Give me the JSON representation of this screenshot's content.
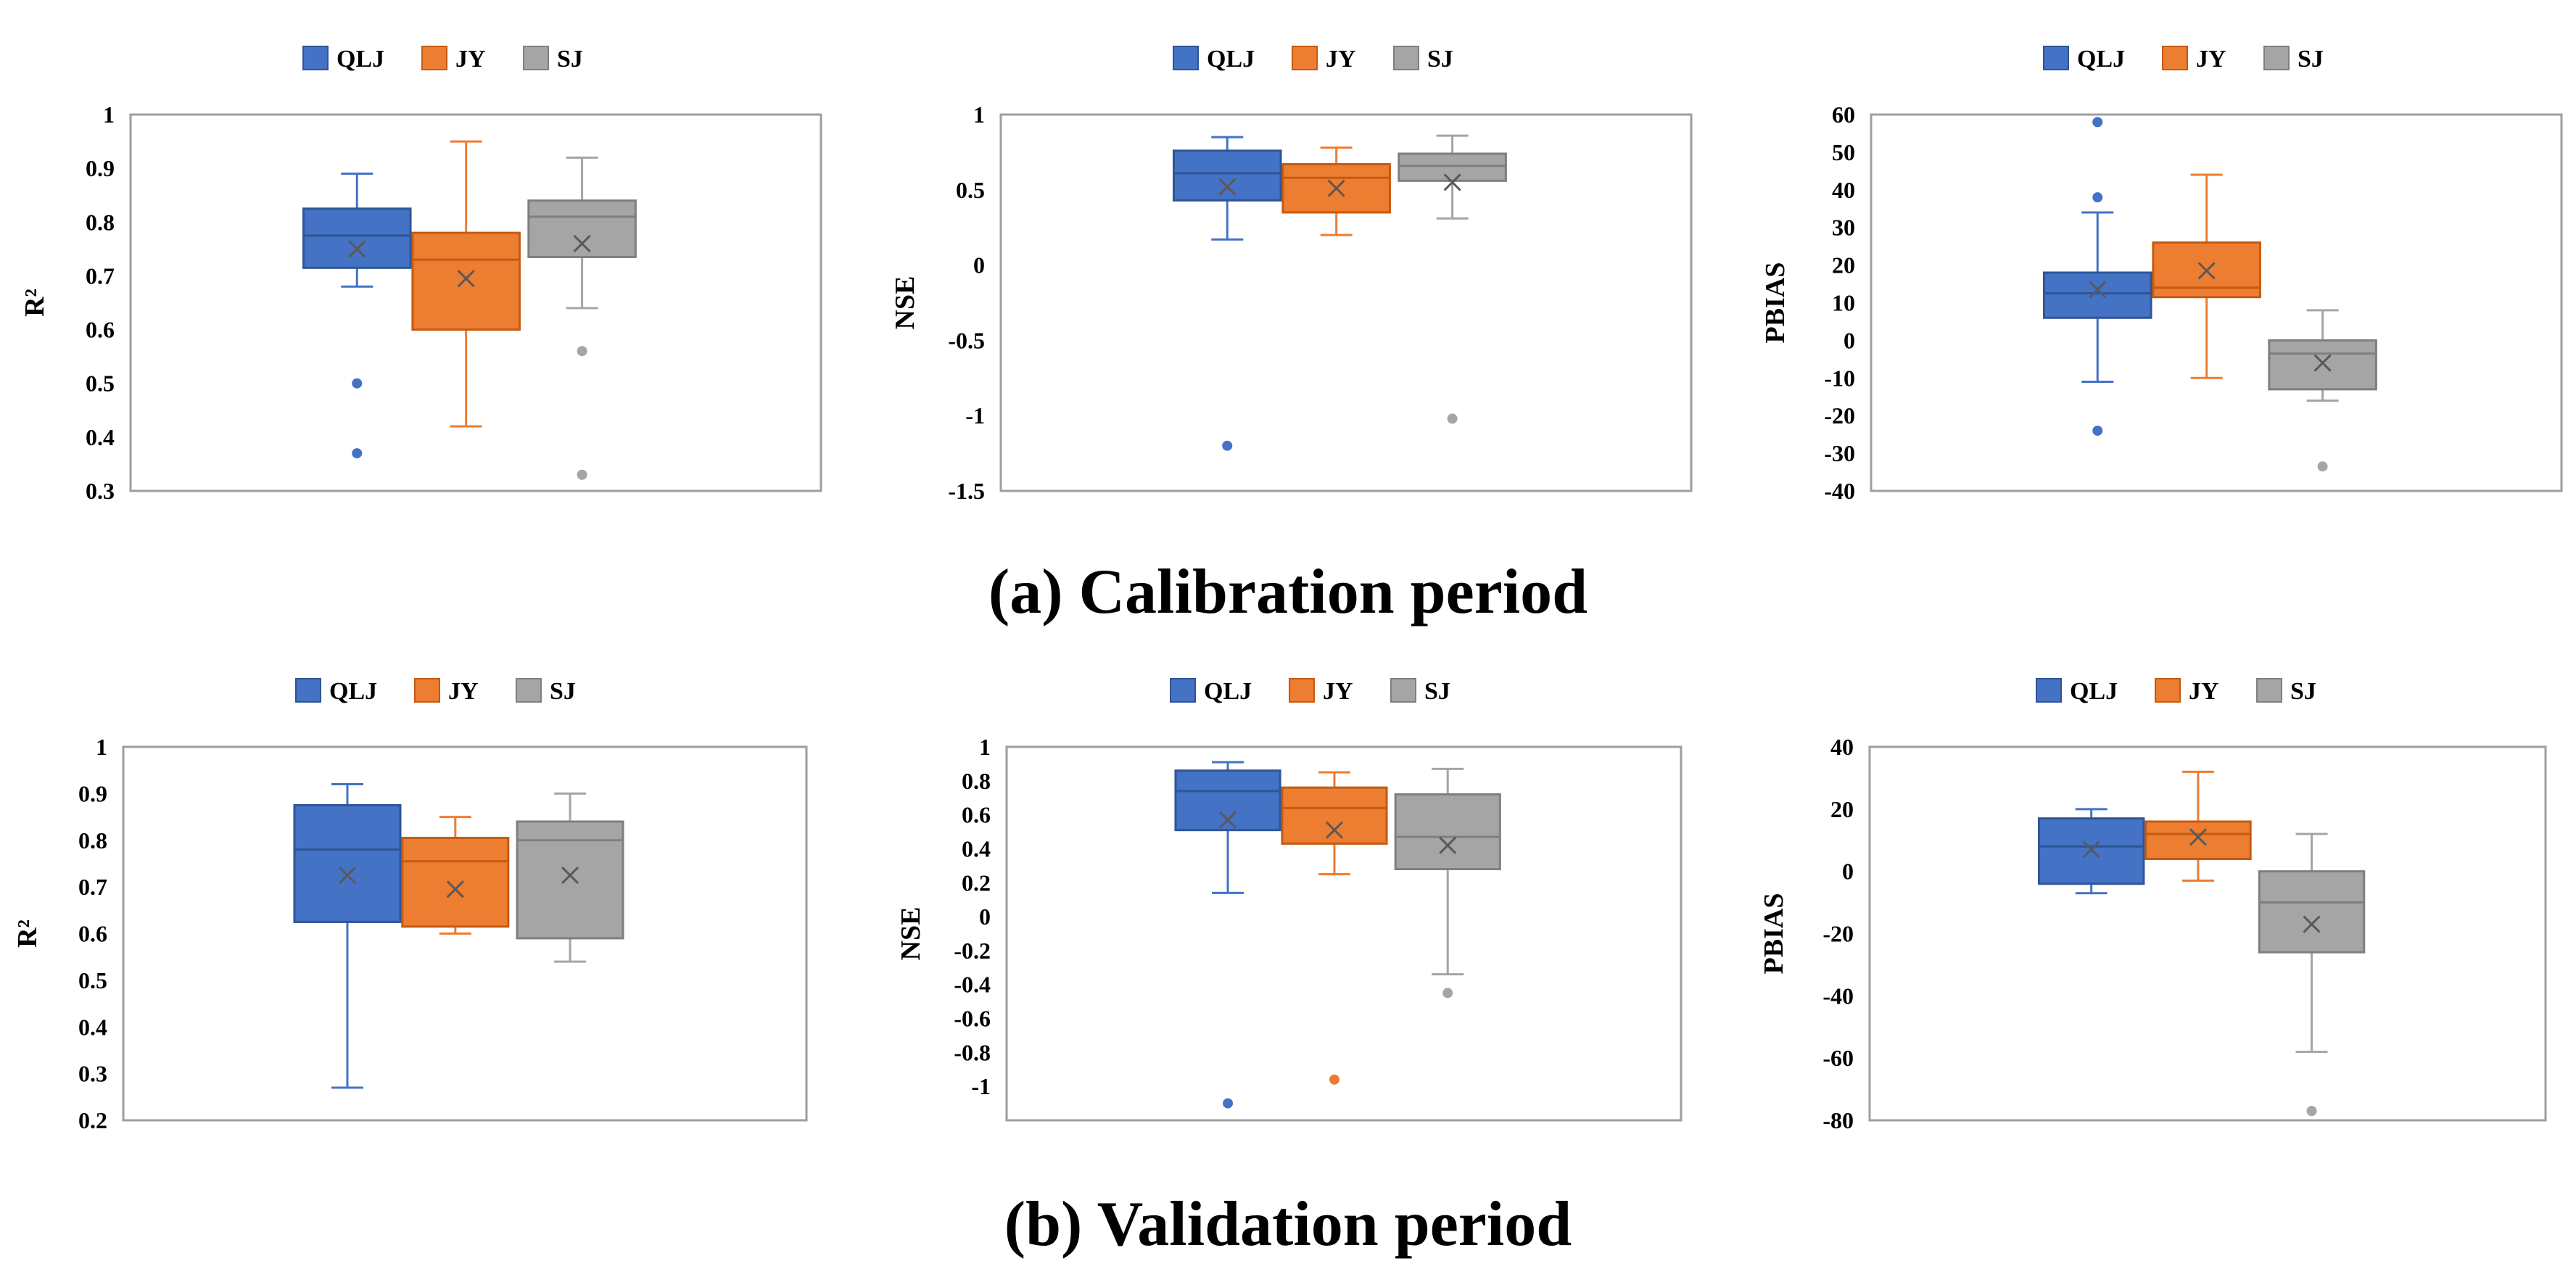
{
  "section_titles": {
    "calibration": "(a) Calibration period",
    "validation": "(b) Validation period"
  },
  "colors": {
    "QLJ": "#4472C4",
    "JY": "#ED7D31",
    "SJ": "#A5A5A5"
  },
  "chart_data": [
    {
      "type": "box",
      "panel": "a",
      "ylabel": "R²",
      "ylim": [
        0.3,
        1
      ],
      "yticks": [
        "0.3",
        "0.4",
        "0.5",
        "0.6",
        "0.7",
        "0.8",
        "0.9",
        "1"
      ],
      "legend": [
        "QLJ",
        "JY",
        "SJ"
      ],
      "series": [
        {
          "name": "QLJ",
          "min": 0.68,
          "q1": 0.715,
          "median": 0.775,
          "q3": 0.825,
          "max": 0.89,
          "mean": 0.75,
          "outliers": [
            0.5,
            0.37
          ]
        },
        {
          "name": "JY",
          "min": 0.42,
          "q1": 0.6,
          "median": 0.73,
          "q3": 0.78,
          "max": 0.95,
          "mean": 0.695,
          "outliers": []
        },
        {
          "name": "SJ",
          "min": 0.64,
          "q1": 0.735,
          "median": 0.81,
          "q3": 0.84,
          "max": 0.92,
          "mean": 0.76,
          "outliers": [
            0.56,
            0.33
          ]
        }
      ]
    },
    {
      "type": "box",
      "panel": "a",
      "ylabel": "NSE",
      "ylim": [
        -1.5,
        1
      ],
      "yticks": [
        "-1.5",
        "-1",
        "-0.5",
        "0",
        "0.5",
        "1"
      ],
      "legend": [
        "QLJ",
        "JY",
        "SJ"
      ],
      "series": [
        {
          "name": "QLJ",
          "min": 0.17,
          "q1": 0.43,
          "median": 0.61,
          "q3": 0.76,
          "max": 0.85,
          "mean": 0.52,
          "outliers": [
            -1.2
          ]
        },
        {
          "name": "JY",
          "min": 0.2,
          "q1": 0.35,
          "median": 0.58,
          "q3": 0.67,
          "max": 0.78,
          "mean": 0.51,
          "outliers": []
        },
        {
          "name": "SJ",
          "min": 0.31,
          "q1": 0.56,
          "median": 0.66,
          "q3": 0.74,
          "max": 0.86,
          "mean": 0.55,
          "outliers": [
            -1.02
          ]
        }
      ]
    },
    {
      "type": "box",
      "panel": "a",
      "ylabel": "PBIAS",
      "ylim": [
        -40,
        60
      ],
      "yticks": [
        "-40",
        "-30",
        "-20",
        "-10",
        "0",
        "10",
        "20",
        "30",
        "40",
        "50",
        "60"
      ],
      "legend": [
        "QLJ",
        "JY",
        "SJ"
      ],
      "series": [
        {
          "name": "QLJ",
          "min": -11,
          "q1": 6,
          "median": 12.5,
          "q3": 18,
          "max": 34,
          "mean": 13.5,
          "outliers": [
            58,
            38,
            -24
          ]
        },
        {
          "name": "JY",
          "min": -10,
          "q1": 11.5,
          "median": 14,
          "q3": 26,
          "max": 44,
          "mean": 18.5,
          "outliers": []
        },
        {
          "name": "SJ",
          "min": -16,
          "q1": -13,
          "median": -3.5,
          "q3": 0,
          "max": 8,
          "mean": -6,
          "outliers": [
            -33.5
          ]
        }
      ]
    },
    {
      "type": "box",
      "panel": "b",
      "ylabel": "R²",
      "ylim": [
        0.2,
        1
      ],
      "yticks": [
        "0.2",
        "0.3",
        "0.4",
        "0.5",
        "0.6",
        "0.7",
        "0.8",
        "0.9",
        "1"
      ],
      "legend": [
        "QLJ",
        "JY",
        "SJ"
      ],
      "series": [
        {
          "name": "QLJ",
          "min": 0.27,
          "q1": 0.625,
          "median": 0.78,
          "q3": 0.875,
          "max": 0.92,
          "mean": 0.725,
          "outliers": []
        },
        {
          "name": "JY",
          "min": 0.6,
          "q1": 0.615,
          "median": 0.755,
          "q3": 0.805,
          "max": 0.85,
          "mean": 0.695,
          "outliers": []
        },
        {
          "name": "SJ",
          "min": 0.54,
          "q1": 0.59,
          "median": 0.8,
          "q3": 0.84,
          "max": 0.9,
          "mean": 0.725,
          "outliers": []
        }
      ]
    },
    {
      "type": "box",
      "panel": "b",
      "ylabel": "NSE",
      "ylim": [
        -1.2,
        1
      ],
      "yticks": [
        "-1",
        "-0.8",
        "-0.6",
        "-0.4",
        "-0.2",
        "0",
        "0.2",
        "0.4",
        "0.6",
        "0.8",
        "1"
      ],
      "legend": [
        "QLJ",
        "JY",
        "SJ"
      ],
      "series": [
        {
          "name": "QLJ",
          "min": 0.14,
          "q1": 0.51,
          "median": 0.74,
          "q3": 0.86,
          "max": 0.91,
          "mean": 0.57,
          "outliers": [
            -1.1
          ]
        },
        {
          "name": "JY",
          "min": 0.25,
          "q1": 0.43,
          "median": 0.64,
          "q3": 0.76,
          "max": 0.85,
          "mean": 0.51,
          "outliers": [
            -0.96
          ]
        },
        {
          "name": "SJ",
          "min": -0.34,
          "q1": 0.28,
          "median": 0.47,
          "q3": 0.72,
          "max": 0.87,
          "mean": 0.42,
          "outliers": [
            -0.45
          ]
        }
      ]
    },
    {
      "type": "box",
      "panel": "b",
      "ylabel": "PBIAS",
      "ylim": [
        -80,
        40
      ],
      "yticks": [
        "-80",
        "-60",
        "-40",
        "-20",
        "0",
        "20",
        "40"
      ],
      "legend": [
        "QLJ",
        "JY",
        "SJ"
      ],
      "series": [
        {
          "name": "QLJ",
          "min": -7,
          "q1": -4,
          "median": 8,
          "q3": 17,
          "max": 20,
          "mean": 7,
          "outliers": []
        },
        {
          "name": "JY",
          "min": -3,
          "q1": 4,
          "median": 12,
          "q3": 16,
          "max": 32,
          "mean": 11,
          "outliers": []
        },
        {
          "name": "SJ",
          "min": -58,
          "q1": -26,
          "median": -10,
          "q3": 0,
          "max": 12,
          "mean": -17,
          "outliers": [
            -77
          ]
        }
      ]
    }
  ]
}
